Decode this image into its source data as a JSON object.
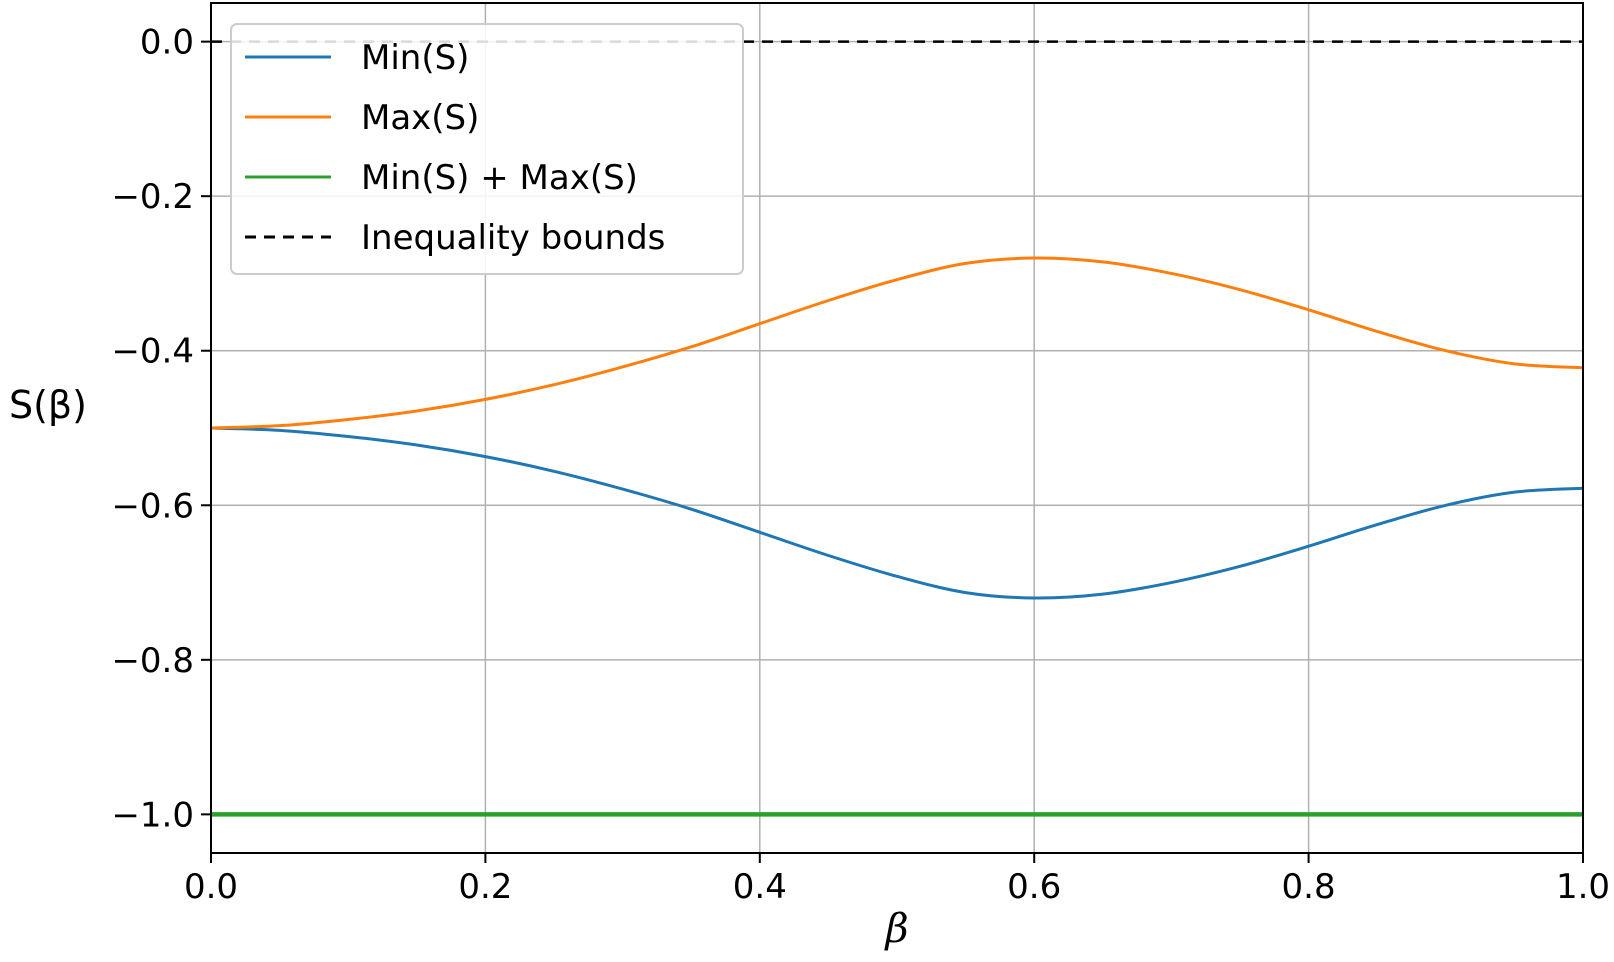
{
  "chart_data": {
    "type": "line",
    "title": "",
    "xlabel": "β",
    "ylabel": "S(β)",
    "xlim": [
      0.0,
      1.0
    ],
    "ylim": [
      -1.05,
      0.05
    ],
    "grid": true,
    "legend_position": "top-left",
    "x_ticks": [
      "0.0",
      "0.2",
      "0.4",
      "0.6",
      "0.8",
      "1.0"
    ],
    "y_ticks": [
      "0.0",
      "−0.2",
      "−0.4",
      "−0.6",
      "−0.8",
      "−1.0"
    ],
    "x": [
      0.0,
      0.05,
      0.1,
      0.15,
      0.2,
      0.25,
      0.3,
      0.35,
      0.4,
      0.45,
      0.5,
      0.55,
      0.6,
      0.65,
      0.7,
      0.75,
      0.8,
      0.85,
      0.9,
      0.95,
      1.0
    ],
    "series": [
      {
        "name": "Min(S)",
        "color": "#1f77b4",
        "style": "solid",
        "values": [
          -0.5,
          -0.503,
          -0.511,
          -0.522,
          -0.537,
          -0.556,
          -0.579,
          -0.605,
          -0.635,
          -0.665,
          -0.692,
          -0.713,
          -0.72,
          -0.715,
          -0.7,
          -0.679,
          -0.653,
          -0.625,
          -0.6,
          -0.583,
          -0.578
        ]
      },
      {
        "name": "Max(S)",
        "color": "#ff7f0e",
        "style": "solid",
        "values": [
          -0.5,
          -0.497,
          -0.489,
          -0.478,
          -0.463,
          -0.444,
          -0.421,
          -0.395,
          -0.365,
          -0.335,
          -0.308,
          -0.287,
          -0.28,
          -0.285,
          -0.3,
          -0.321,
          -0.347,
          -0.375,
          -0.4,
          -0.417,
          -0.422
        ]
      },
      {
        "name": "Min(S) + Max(S)",
        "color": "#2ca02c",
        "style": "solid",
        "values": [
          -1.0,
          -1.0,
          -1.0,
          -1.0,
          -1.0,
          -1.0,
          -1.0,
          -1.0,
          -1.0,
          -1.0,
          -1.0,
          -1.0,
          -1.0,
          -1.0,
          -1.0,
          -1.0,
          -1.0,
          -1.0,
          -1.0,
          -1.0,
          -1.0
        ]
      },
      {
        "name": "Inequality bounds",
        "color": "#000000",
        "style": "dashed",
        "hlines": [
          0.0,
          -1.0
        ]
      }
    ]
  }
}
